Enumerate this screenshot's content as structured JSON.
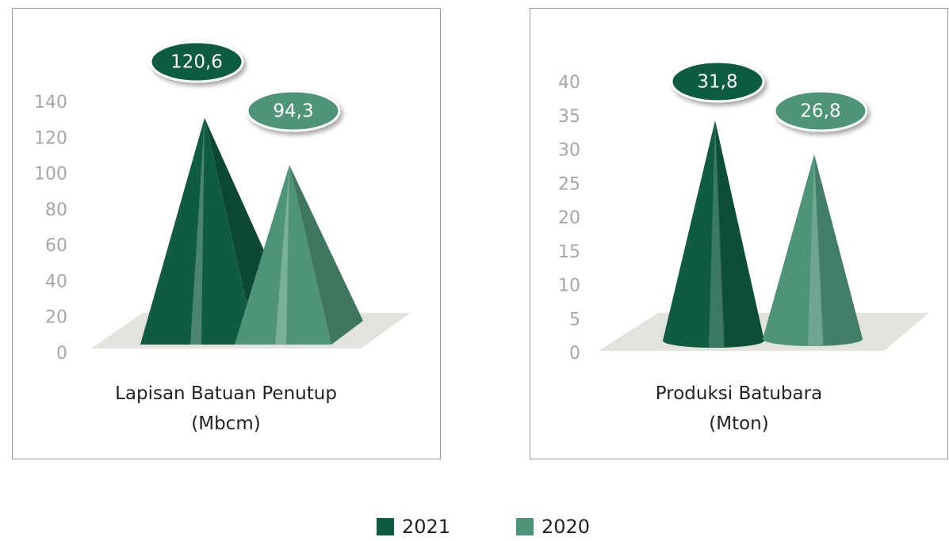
{
  "chart_data": [
    {
      "type": "pyramid",
      "categories": [
        "Lapisan Batuan Penutup (Mbcm)"
      ],
      "series": [
        {
          "name": "2021",
          "color": "#0f5c42",
          "values": [
            120.6
          ],
          "value_labels": [
            "120,6"
          ]
        },
        {
          "name": "2020",
          "color": "#4e9479",
          "values": [
            94.3
          ],
          "value_labels": [
            "94,3"
          ]
        }
      ],
      "ylim": [
        0,
        140
      ],
      "yticks": [
        0,
        20,
        40,
        60,
        80,
        100,
        120,
        140
      ],
      "legend": "bottom"
    },
    {
      "type": "cone",
      "categories": [
        "Produksi Batubara (Mton)"
      ],
      "series": [
        {
          "name": "2021",
          "color": "#0f5c42",
          "values": [
            31.8
          ],
          "value_labels": [
            "31,8"
          ]
        },
        {
          "name": "2020",
          "color": "#4e9479",
          "values": [
            26.8
          ],
          "value_labels": [
            "26,8"
          ]
        }
      ],
      "ylim": [
        0,
        40
      ],
      "yticks": [
        0,
        5,
        10,
        15,
        20,
        25,
        30,
        35,
        40
      ],
      "legend": "bottom"
    }
  ]
}
